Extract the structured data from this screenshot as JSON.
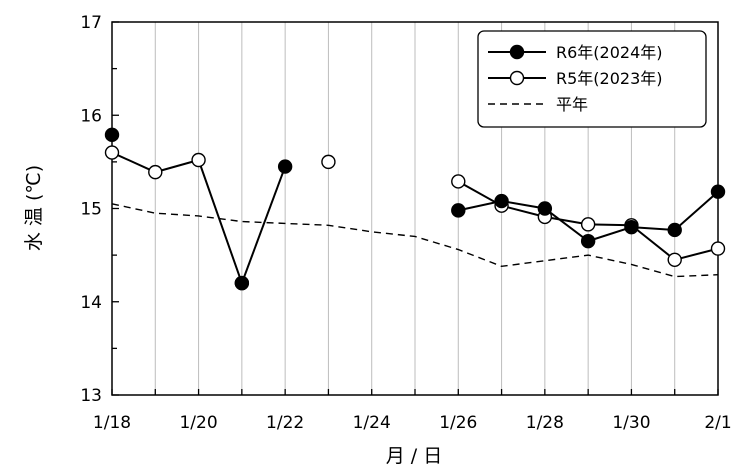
{
  "chart_data": {
    "type": "line",
    "xlabel": "月 / 日",
    "ylabel": "水 温 (℃)",
    "ylim": [
      13,
      17
    ],
    "y_ticks": [
      13,
      14,
      15,
      16,
      17
    ],
    "x_dates": [
      "1/18",
      "1/19",
      "1/20",
      "1/21",
      "1/22",
      "1/23",
      "1/24",
      "1/25",
      "1/26",
      "1/27",
      "1/28",
      "1/29",
      "1/30",
      "1/31",
      "2/1"
    ],
    "x_tick_labels": [
      "1/18",
      "1/20",
      "1/22",
      "1/24",
      "1/26",
      "1/28",
      "1/30",
      "2/1"
    ],
    "grid": "vertical",
    "legend_position": "top-right",
    "series": [
      {
        "name": "R6年(2024年)",
        "marker": "filled-circle",
        "line": "solid",
        "values": [
          15.79,
          null,
          null,
          14.2,
          15.45,
          null,
          null,
          null,
          14.98,
          15.08,
          15.0,
          14.65,
          14.8,
          14.77,
          15.18
        ]
      },
      {
        "name": "R5年(2023年)",
        "marker": "open-circle",
        "line": "solid",
        "values": [
          15.6,
          15.39,
          15.52,
          14.2,
          null,
          15.5,
          null,
          null,
          15.29,
          15.03,
          14.91,
          14.83,
          14.82,
          14.45,
          14.57
        ]
      },
      {
        "name": "平年",
        "marker": "none",
        "line": "dashed",
        "values": [
          15.05,
          14.95,
          14.92,
          14.86,
          14.84,
          14.82,
          14.75,
          14.7,
          14.56,
          14.38,
          14.44,
          14.5,
          14.4,
          14.27,
          14.29
        ]
      }
    ]
  }
}
